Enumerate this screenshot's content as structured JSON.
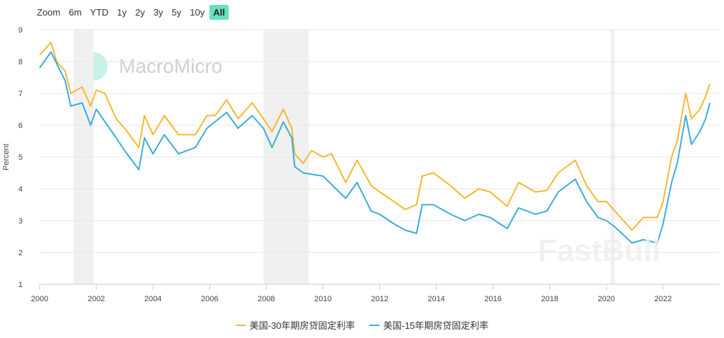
{
  "zoom": {
    "label": "Zoom",
    "buttons": [
      "6m",
      "YTD",
      "1y",
      "2y",
      "3y",
      "5y",
      "10y",
      "All"
    ],
    "active": "All"
  },
  "watermark": {
    "brand": "MacroMicro",
    "corner": "FastBull"
  },
  "colors": {
    "s30": "#f7b731",
    "s15": "#3badd9",
    "recession": "#f0f0f0",
    "active": "#63e2c0"
  },
  "chart_data": {
    "type": "line",
    "title": "",
    "ylabel": "Percent",
    "xlim": [
      2000,
      2024
    ],
    "ylim": [
      1,
      9
    ],
    "yticks": [
      "1",
      "2",
      "3",
      "4",
      "5",
      "6",
      "7",
      "8",
      "9"
    ],
    "xticks": [
      "2000",
      "2002",
      "2004",
      "2006",
      "2008",
      "2010",
      "2012",
      "2014",
      "2016",
      "2018",
      "2020",
      "2022"
    ],
    "grid": true,
    "legend": "bottom",
    "recessions": [
      [
        2001.2,
        2001.9
      ],
      [
        2007.9,
        2009.5
      ],
      [
        2020.15,
        2020.3
      ]
    ],
    "series": [
      {
        "name": "美国-30年期房贷固定利率",
        "color": "#f7b731",
        "points": [
          [
            2000.0,
            8.2
          ],
          [
            2000.4,
            8.6
          ],
          [
            2000.6,
            8.0
          ],
          [
            2000.9,
            7.7
          ],
          [
            2001.1,
            7.0
          ],
          [
            2001.5,
            7.2
          ],
          [
            2001.8,
            6.6
          ],
          [
            2002.0,
            7.1
          ],
          [
            2002.3,
            7.0
          ],
          [
            2002.7,
            6.2
          ],
          [
            2003.0,
            5.9
          ],
          [
            2003.5,
            5.3
          ],
          [
            2003.7,
            6.3
          ],
          [
            2004.0,
            5.7
          ],
          [
            2004.4,
            6.3
          ],
          [
            2004.9,
            5.7
          ],
          [
            2005.5,
            5.7
          ],
          [
            2005.9,
            6.3
          ],
          [
            2006.2,
            6.3
          ],
          [
            2006.6,
            6.8
          ],
          [
            2007.0,
            6.2
          ],
          [
            2007.5,
            6.7
          ],
          [
            2007.9,
            6.2
          ],
          [
            2008.2,
            5.8
          ],
          [
            2008.6,
            6.5
          ],
          [
            2008.9,
            5.9
          ],
          [
            2009.0,
            5.1
          ],
          [
            2009.3,
            4.8
          ],
          [
            2009.6,
            5.2
          ],
          [
            2010.0,
            5.0
          ],
          [
            2010.3,
            5.1
          ],
          [
            2010.8,
            4.2
          ],
          [
            2011.2,
            4.9
          ],
          [
            2011.7,
            4.1
          ],
          [
            2012.0,
            3.9
          ],
          [
            2012.5,
            3.6
          ],
          [
            2012.9,
            3.35
          ],
          [
            2013.3,
            3.5
          ],
          [
            2013.5,
            4.4
          ],
          [
            2013.9,
            4.5
          ],
          [
            2014.5,
            4.1
          ],
          [
            2015.0,
            3.7
          ],
          [
            2015.5,
            4.0
          ],
          [
            2015.9,
            3.9
          ],
          [
            2016.5,
            3.45
          ],
          [
            2016.9,
            4.2
          ],
          [
            2017.5,
            3.9
          ],
          [
            2017.9,
            3.95
          ],
          [
            2018.3,
            4.5
          ],
          [
            2018.9,
            4.9
          ],
          [
            2019.3,
            4.1
          ],
          [
            2019.7,
            3.6
          ],
          [
            2020.0,
            3.6
          ],
          [
            2020.3,
            3.3
          ],
          [
            2020.9,
            2.7
          ],
          [
            2021.3,
            3.1
          ],
          [
            2021.8,
            3.1
          ],
          [
            2022.0,
            3.6
          ],
          [
            2022.3,
            5.0
          ],
          [
            2022.5,
            5.5
          ],
          [
            2022.8,
            7.0
          ],
          [
            2023.0,
            6.2
          ],
          [
            2023.3,
            6.5
          ],
          [
            2023.5,
            6.9
          ],
          [
            2023.65,
            7.3
          ]
        ]
      },
      {
        "name": "美国-15年期房贷固定利率",
        "color": "#3badd9",
        "points": [
          [
            2000.0,
            7.8
          ],
          [
            2000.4,
            8.3
          ],
          [
            2000.9,
            7.4
          ],
          [
            2001.1,
            6.6
          ],
          [
            2001.5,
            6.7
          ],
          [
            2001.8,
            6.0
          ],
          [
            2002.0,
            6.5
          ],
          [
            2002.7,
            5.6
          ],
          [
            2003.0,
            5.2
          ],
          [
            2003.5,
            4.6
          ],
          [
            2003.7,
            5.6
          ],
          [
            2004.0,
            5.1
          ],
          [
            2004.4,
            5.7
          ],
          [
            2004.9,
            5.1
          ],
          [
            2005.5,
            5.3
          ],
          [
            2005.9,
            5.9
          ],
          [
            2006.6,
            6.4
          ],
          [
            2007.0,
            5.9
          ],
          [
            2007.5,
            6.3
          ],
          [
            2007.9,
            5.9
          ],
          [
            2008.2,
            5.3
          ],
          [
            2008.6,
            6.1
          ],
          [
            2008.9,
            5.6
          ],
          [
            2009.0,
            4.7
          ],
          [
            2009.3,
            4.5
          ],
          [
            2010.0,
            4.4
          ],
          [
            2010.8,
            3.7
          ],
          [
            2011.2,
            4.2
          ],
          [
            2011.7,
            3.3
          ],
          [
            2012.0,
            3.2
          ],
          [
            2012.5,
            2.9
          ],
          [
            2012.9,
            2.7
          ],
          [
            2013.3,
            2.6
          ],
          [
            2013.5,
            3.5
          ],
          [
            2013.9,
            3.5
          ],
          [
            2014.5,
            3.2
          ],
          [
            2015.0,
            3.0
          ],
          [
            2015.5,
            3.2
          ],
          [
            2015.9,
            3.1
          ],
          [
            2016.5,
            2.75
          ],
          [
            2016.9,
            3.4
          ],
          [
            2017.5,
            3.2
          ],
          [
            2017.9,
            3.3
          ],
          [
            2018.3,
            3.9
          ],
          [
            2018.9,
            4.3
          ],
          [
            2019.3,
            3.6
          ],
          [
            2019.7,
            3.1
          ],
          [
            2020.0,
            3.0
          ],
          [
            2020.3,
            2.8
          ],
          [
            2020.9,
            2.3
          ],
          [
            2021.3,
            2.4
          ],
          [
            2021.8,
            2.3
          ],
          [
            2022.0,
            2.9
          ],
          [
            2022.3,
            4.2
          ],
          [
            2022.5,
            4.8
          ],
          [
            2022.8,
            6.3
          ],
          [
            2023.0,
            5.4
          ],
          [
            2023.3,
            5.8
          ],
          [
            2023.5,
            6.2
          ],
          [
            2023.65,
            6.7
          ]
        ]
      }
    ]
  }
}
